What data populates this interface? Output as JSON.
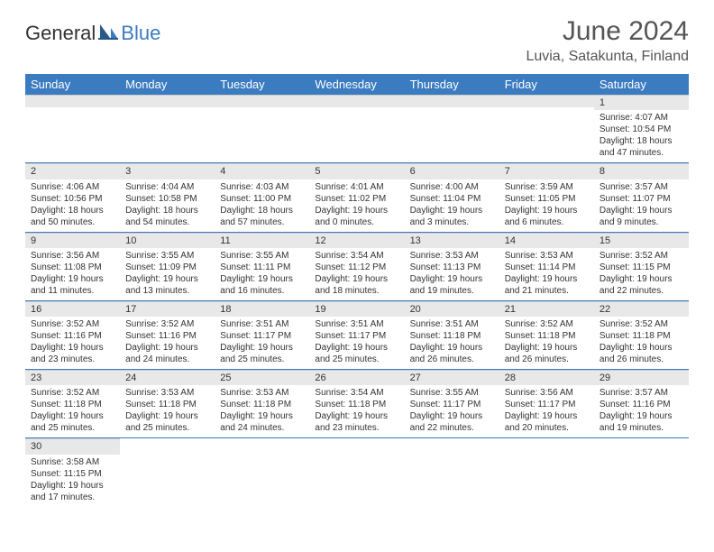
{
  "brand": {
    "part1": "General",
    "part2": "Blue"
  },
  "title": "June 2024",
  "location": "Luvia, Satakunta, Finland",
  "colors": {
    "accent": "#3b7bbf",
    "header_bg": "#3b7bbf",
    "stripe": "#e8e8e8",
    "text": "#333333",
    "bg": "#ffffff"
  },
  "day_headers": [
    "Sunday",
    "Monday",
    "Tuesday",
    "Wednesday",
    "Thursday",
    "Friday",
    "Saturday"
  ],
  "weeks": [
    [
      null,
      null,
      null,
      null,
      null,
      null,
      {
        "n": "1",
        "sr": "Sunrise: 4:07 AM",
        "ss": "Sunset: 10:54 PM",
        "d1": "Daylight: 18 hours",
        "d2": "and 47 minutes."
      }
    ],
    [
      {
        "n": "2",
        "sr": "Sunrise: 4:06 AM",
        "ss": "Sunset: 10:56 PM",
        "d1": "Daylight: 18 hours",
        "d2": "and 50 minutes."
      },
      {
        "n": "3",
        "sr": "Sunrise: 4:04 AM",
        "ss": "Sunset: 10:58 PM",
        "d1": "Daylight: 18 hours",
        "d2": "and 54 minutes."
      },
      {
        "n": "4",
        "sr": "Sunrise: 4:03 AM",
        "ss": "Sunset: 11:00 PM",
        "d1": "Daylight: 18 hours",
        "d2": "and 57 minutes."
      },
      {
        "n": "5",
        "sr": "Sunrise: 4:01 AM",
        "ss": "Sunset: 11:02 PM",
        "d1": "Daylight: 19 hours",
        "d2": "and 0 minutes."
      },
      {
        "n": "6",
        "sr": "Sunrise: 4:00 AM",
        "ss": "Sunset: 11:04 PM",
        "d1": "Daylight: 19 hours",
        "d2": "and 3 minutes."
      },
      {
        "n": "7",
        "sr": "Sunrise: 3:59 AM",
        "ss": "Sunset: 11:05 PM",
        "d1": "Daylight: 19 hours",
        "d2": "and 6 minutes."
      },
      {
        "n": "8",
        "sr": "Sunrise: 3:57 AM",
        "ss": "Sunset: 11:07 PM",
        "d1": "Daylight: 19 hours",
        "d2": "and 9 minutes."
      }
    ],
    [
      {
        "n": "9",
        "sr": "Sunrise: 3:56 AM",
        "ss": "Sunset: 11:08 PM",
        "d1": "Daylight: 19 hours",
        "d2": "and 11 minutes."
      },
      {
        "n": "10",
        "sr": "Sunrise: 3:55 AM",
        "ss": "Sunset: 11:09 PM",
        "d1": "Daylight: 19 hours",
        "d2": "and 13 minutes."
      },
      {
        "n": "11",
        "sr": "Sunrise: 3:55 AM",
        "ss": "Sunset: 11:11 PM",
        "d1": "Daylight: 19 hours",
        "d2": "and 16 minutes."
      },
      {
        "n": "12",
        "sr": "Sunrise: 3:54 AM",
        "ss": "Sunset: 11:12 PM",
        "d1": "Daylight: 19 hours",
        "d2": "and 18 minutes."
      },
      {
        "n": "13",
        "sr": "Sunrise: 3:53 AM",
        "ss": "Sunset: 11:13 PM",
        "d1": "Daylight: 19 hours",
        "d2": "and 19 minutes."
      },
      {
        "n": "14",
        "sr": "Sunrise: 3:53 AM",
        "ss": "Sunset: 11:14 PM",
        "d1": "Daylight: 19 hours",
        "d2": "and 21 minutes."
      },
      {
        "n": "15",
        "sr": "Sunrise: 3:52 AM",
        "ss": "Sunset: 11:15 PM",
        "d1": "Daylight: 19 hours",
        "d2": "and 22 minutes."
      }
    ],
    [
      {
        "n": "16",
        "sr": "Sunrise: 3:52 AM",
        "ss": "Sunset: 11:16 PM",
        "d1": "Daylight: 19 hours",
        "d2": "and 23 minutes."
      },
      {
        "n": "17",
        "sr": "Sunrise: 3:52 AM",
        "ss": "Sunset: 11:16 PM",
        "d1": "Daylight: 19 hours",
        "d2": "and 24 minutes."
      },
      {
        "n": "18",
        "sr": "Sunrise: 3:51 AM",
        "ss": "Sunset: 11:17 PM",
        "d1": "Daylight: 19 hours",
        "d2": "and 25 minutes."
      },
      {
        "n": "19",
        "sr": "Sunrise: 3:51 AM",
        "ss": "Sunset: 11:17 PM",
        "d1": "Daylight: 19 hours",
        "d2": "and 25 minutes."
      },
      {
        "n": "20",
        "sr": "Sunrise: 3:51 AM",
        "ss": "Sunset: 11:18 PM",
        "d1": "Daylight: 19 hours",
        "d2": "and 26 minutes."
      },
      {
        "n": "21",
        "sr": "Sunrise: 3:52 AM",
        "ss": "Sunset: 11:18 PM",
        "d1": "Daylight: 19 hours",
        "d2": "and 26 minutes."
      },
      {
        "n": "22",
        "sr": "Sunrise: 3:52 AM",
        "ss": "Sunset: 11:18 PM",
        "d1": "Daylight: 19 hours",
        "d2": "and 26 minutes."
      }
    ],
    [
      {
        "n": "23",
        "sr": "Sunrise: 3:52 AM",
        "ss": "Sunset: 11:18 PM",
        "d1": "Daylight: 19 hours",
        "d2": "and 25 minutes."
      },
      {
        "n": "24",
        "sr": "Sunrise: 3:53 AM",
        "ss": "Sunset: 11:18 PM",
        "d1": "Daylight: 19 hours",
        "d2": "and 25 minutes."
      },
      {
        "n": "25",
        "sr": "Sunrise: 3:53 AM",
        "ss": "Sunset: 11:18 PM",
        "d1": "Daylight: 19 hours",
        "d2": "and 24 minutes."
      },
      {
        "n": "26",
        "sr": "Sunrise: 3:54 AM",
        "ss": "Sunset: 11:18 PM",
        "d1": "Daylight: 19 hours",
        "d2": "and 23 minutes."
      },
      {
        "n": "27",
        "sr": "Sunrise: 3:55 AM",
        "ss": "Sunset: 11:17 PM",
        "d1": "Daylight: 19 hours",
        "d2": "and 22 minutes."
      },
      {
        "n": "28",
        "sr": "Sunrise: 3:56 AM",
        "ss": "Sunset: 11:17 PM",
        "d1": "Daylight: 19 hours",
        "d2": "and 20 minutes."
      },
      {
        "n": "29",
        "sr": "Sunrise: 3:57 AM",
        "ss": "Sunset: 11:16 PM",
        "d1": "Daylight: 19 hours",
        "d2": "and 19 minutes."
      }
    ],
    [
      {
        "n": "30",
        "sr": "Sunrise: 3:58 AM",
        "ss": "Sunset: 11:15 PM",
        "d1": "Daylight: 19 hours",
        "d2": "and 17 minutes."
      },
      null,
      null,
      null,
      null,
      null,
      null
    ]
  ]
}
